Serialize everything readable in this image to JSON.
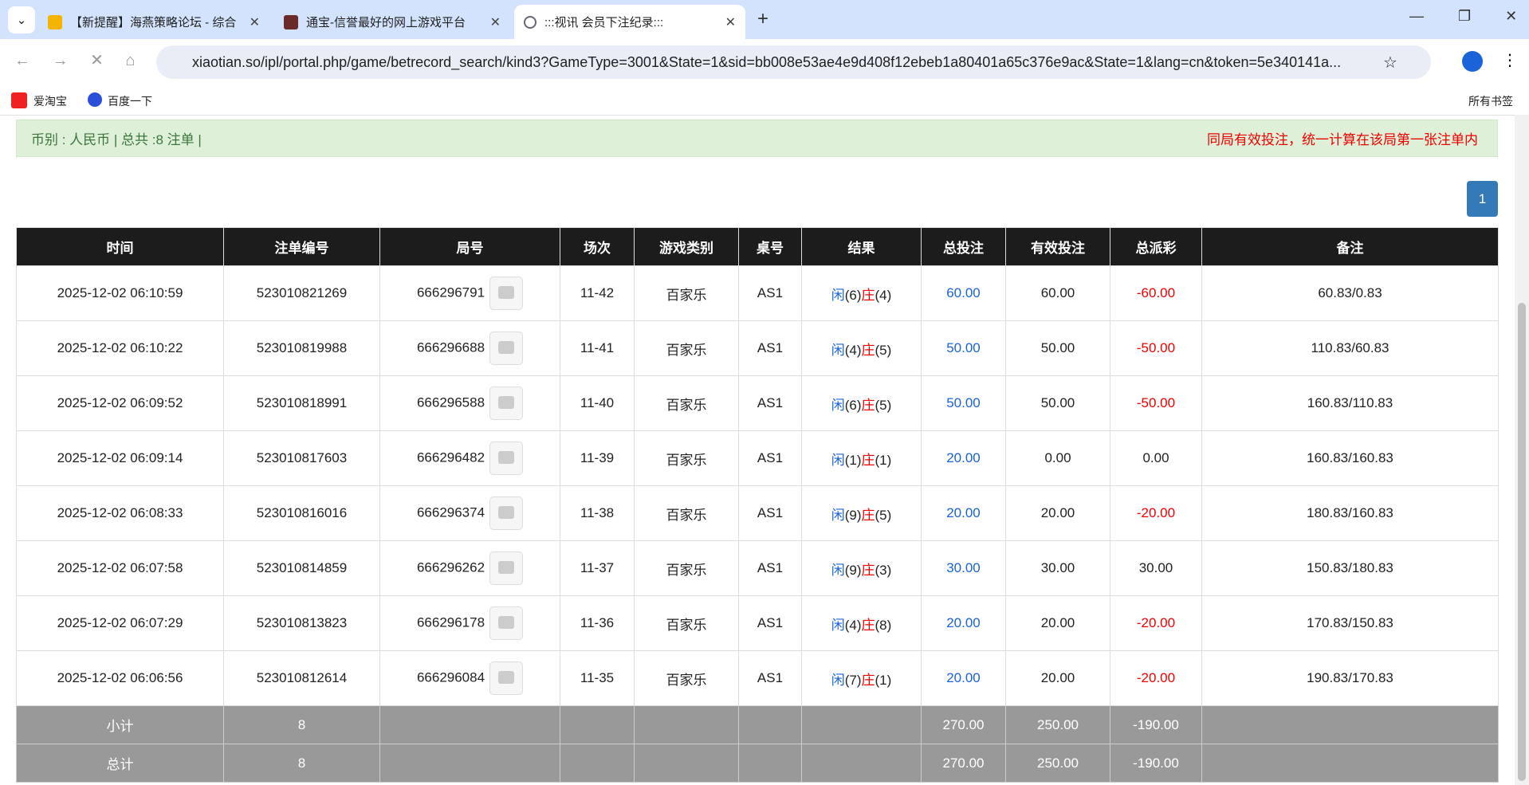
{
  "browser": {
    "tabs": [
      "【新提醒】海燕策略论坛 - 综合",
      "通宝-信誉最好的网上游戏平台",
      ":::视讯 会员下注纪录:::"
    ],
    "url": "xiaotian.so/ipl/portal.php/game/betrecord_search/kind3?GameType=3001&State=1&sid=bb008e53ae4e9d408f12ebeb1a80401a65c376e9ac&State=1&lang=cn&token=5e340141a...",
    "bookmarks": [
      "爱淘宝",
      "百度一下"
    ],
    "all_bookmarks": "所有书签"
  },
  "summary": "币别 : 人民币 | 总共 :8 注单 |",
  "notice": "同局有效投注，统一计算在该局第一张注单内",
  "pagination": [
    "1"
  ],
  "table": {
    "headers": [
      "时间",
      "注单编号",
      "局号",
      "场次",
      "游戏类别",
      "桌号",
      "结果",
      "总投注",
      "有效投注",
      "总派彩",
      "备注"
    ],
    "rows": [
      [
        "2025-12-02 06:10:59",
        "523010821269",
        "666296791",
        "11-42",
        "百家乐",
        "AS1",
        [
          "闲",
          "(6)",
          "庄",
          "(4)"
        ],
        "60.00",
        "60.00",
        "-60.00",
        "60.83/0.83"
      ],
      [
        "2025-12-02 06:10:22",
        "523010819988",
        "666296688",
        "11-41",
        "百家乐",
        "AS1",
        [
          "闲",
          "(4)",
          "庄",
          "(5)"
        ],
        "50.00",
        "50.00",
        "-50.00",
        "110.83/60.83"
      ],
      [
        "2025-12-02 06:09:52",
        "523010818991",
        "666296588",
        "11-40",
        "百家乐",
        "AS1",
        [
          "闲",
          "(6)",
          "庄",
          "(5)"
        ],
        "50.00",
        "50.00",
        "-50.00",
        "160.83/110.83"
      ],
      [
        "2025-12-02 06:09:14",
        "523010817603",
        "666296482",
        "11-39",
        "百家乐",
        "AS1",
        [
          "闲",
          "(1)",
          "庄",
          "(1)"
        ],
        "20.00",
        "0.00",
        "0.00",
        "160.83/160.83"
      ],
      [
        "2025-12-02 06:08:33",
        "523010816016",
        "666296374",
        "11-38",
        "百家乐",
        "AS1",
        [
          "闲",
          "(9)",
          "庄",
          "(5)"
        ],
        "20.00",
        "20.00",
        "-20.00",
        "180.83/160.83"
      ],
      [
        "2025-12-02 06:07:58",
        "523010814859",
        "666296262",
        "11-37",
        "百家乐",
        "AS1",
        [
          "闲",
          "(9)",
          "庄",
          "(3)"
        ],
        "30.00",
        "30.00",
        "30.00",
        "150.83/180.83"
      ],
      [
        "2025-12-02 06:07:29",
        "523010813823",
        "666296178",
        "11-36",
        "百家乐",
        "AS1",
        [
          "闲",
          "(4)",
          "庄",
          "(8)"
        ],
        "20.00",
        "20.00",
        "-20.00",
        "170.83/150.83"
      ],
      [
        "2025-12-02 06:06:56",
        "523010812614",
        "666296084",
        "11-35",
        "百家乐",
        "AS1",
        [
          "闲",
          "(7)",
          "庄",
          "(1)"
        ],
        "20.00",
        "20.00",
        "-20.00",
        "190.83/170.83"
      ]
    ],
    "footer": [
      [
        "小计",
        "8",
        "270.00",
        "250.00",
        "-190.00"
      ],
      [
        "总计",
        "8",
        "270.00",
        "250.00",
        "-190.00"
      ]
    ]
  }
}
